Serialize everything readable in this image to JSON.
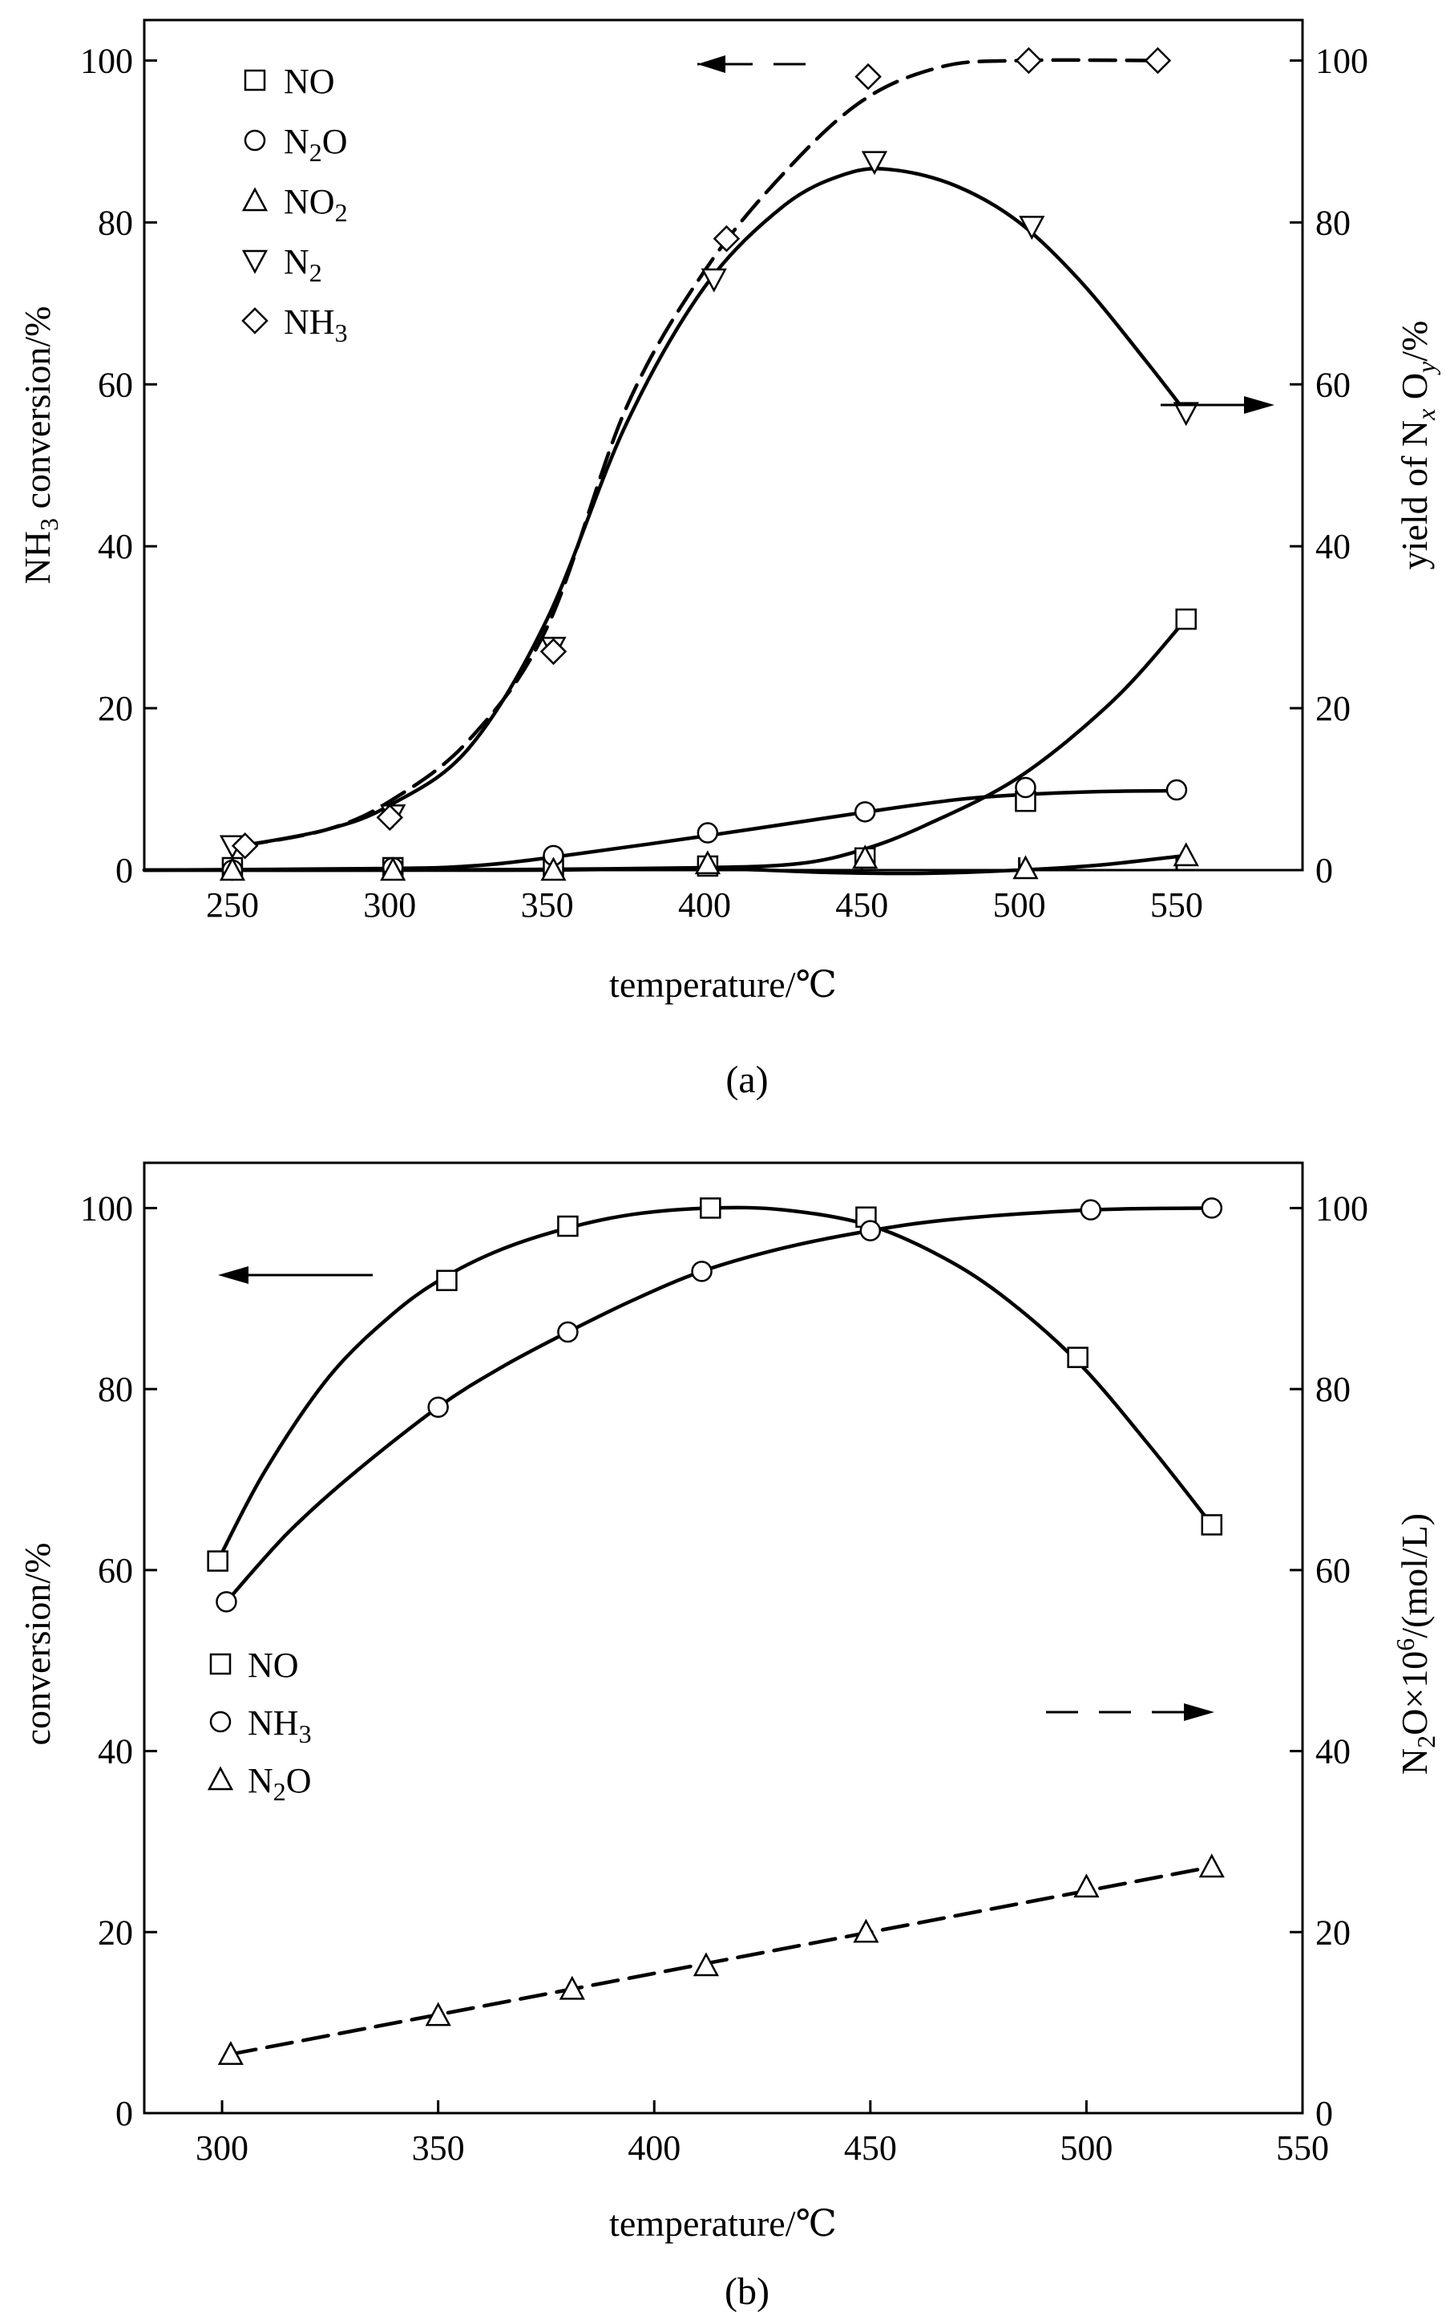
{
  "chart_data": [
    {
      "type": "line",
      "panel_label": "(a)",
      "xlabel": "temperature/℃",
      "ylabel_left": {
        "main": "NH",
        "sub": "3",
        "rest": " conversion/%"
      },
      "ylabel_right": {
        "p1": "yield of N",
        "sub1": "x",
        "p2": " O",
        "sub2": "y",
        "p3": "/%"
      },
      "xlim": [
        222,
        590
      ],
      "ylim": [
        0,
        105
      ],
      "x_ticks": [
        250,
        300,
        350,
        400,
        450,
        500,
        550
      ],
      "y_ticks": [
        0,
        20,
        40,
        60,
        80,
        100
      ],
      "y_ticks_right": [
        0,
        20,
        40,
        60,
        80,
        100
      ],
      "series": [
        {
          "name": "NO",
          "label": {
            "main": "NO",
            "sub": ""
          },
          "marker": "square",
          "line": "solid",
          "axis": "right",
          "points": [
            [
              250,
              0.3
            ],
            [
              301,
              0.3
            ],
            [
              352,
              0.3
            ],
            [
              401,
              0.5
            ],
            [
              451,
              1.5
            ],
            [
              502,
              8.5
            ],
            [
              553,
              31
            ]
          ],
          "curve": [
            [
              222,
              0
            ],
            [
              300,
              0
            ],
            [
              350,
              0.1
            ],
            [
              400,
              0.3
            ],
            [
              430,
              0.8
            ],
            [
              450,
              2.5
            ],
            [
              470,
              5.5
            ],
            [
              500,
              11.5
            ],
            [
              530,
              21
            ],
            [
              553,
              31
            ]
          ]
        },
        {
          "name": "N2O",
          "label": {
            "main": "N",
            "sub": "2",
            "tail": "O"
          },
          "marker": "circle",
          "line": "solid",
          "axis": "right",
          "points": [
            [
              250,
              0
            ],
            [
              301,
              0.3
            ],
            [
              352,
              1.8
            ],
            [
              401,
              4.6
            ],
            [
              451,
              7.2
            ],
            [
              502,
              10.2
            ],
            [
              550,
              9.9
            ]
          ],
          "curve": [
            [
              222,
              0
            ],
            [
              300,
              0.2
            ],
            [
              325,
              0.5
            ],
            [
              350,
              1.5
            ],
            [
              400,
              4.2
            ],
            [
              450,
              7.1
            ],
            [
              480,
              8.7
            ],
            [
              500,
              9.3
            ],
            [
              525,
              9.7
            ],
            [
              550,
              9.8
            ]
          ]
        },
        {
          "name": "NO2",
          "label": {
            "main": "NO",
            "sub": "2"
          },
          "marker": "triangle-up",
          "line": "solid",
          "axis": "right",
          "points": [
            [
              250,
              0
            ],
            [
              301,
              0
            ],
            [
              352,
              0
            ],
            [
              401,
              0.8
            ],
            [
              451,
              1.5
            ],
            [
              502,
              0.2
            ],
            [
              553,
              1.8
            ]
          ],
          "curve": [
            [
              222,
              0
            ],
            [
              300,
              0
            ],
            [
              350,
              0
            ],
            [
              400,
              0.2
            ],
            [
              440,
              -0.3
            ],
            [
              470,
              -0.4
            ],
            [
              500,
              0
            ],
            [
              525,
              0.6
            ],
            [
              553,
              1.8
            ]
          ]
        },
        {
          "name": "N2",
          "label": {
            "main": "N",
            "sub": "2"
          },
          "marker": "triangle-down",
          "line": "solid",
          "axis": "right",
          "points": [
            [
              250,
              3
            ],
            [
              301,
              6.8
            ],
            [
              352,
              27.5
            ],
            [
              403,
              73
            ],
            [
              454,
              87.5
            ],
            [
              504,
              79.5
            ],
            [
              553,
              56.5
            ]
          ],
          "curve": [
            [
              253,
              3
            ],
            [
              280,
              5
            ],
            [
              300,
              8
            ],
            [
              325,
              15
            ],
            [
              350,
              31
            ],
            [
              375,
              55
            ],
            [
              400,
              72
            ],
            [
              425,
              82
            ],
            [
              445,
              86
            ],
            [
              460,
              86.5
            ],
            [
              480,
              84.5
            ],
            [
              500,
              80
            ],
            [
              520,
              72.5
            ],
            [
              540,
              63
            ],
            [
              553,
              56.5
            ]
          ]
        },
        {
          "name": "NH3",
          "label": {
            "main": "NH",
            "sub": "3"
          },
          "marker": "diamond",
          "line": "dashed",
          "axis": "left",
          "points": [
            [
              254,
              3
            ],
            [
              300,
              6.5
            ],
            [
              352,
              27
            ],
            [
              407,
              78
            ],
            [
              452,
              98
            ],
            [
              503,
              100
            ],
            [
              544,
              100
            ]
          ],
          "curve": [
            [
              253,
              3
            ],
            [
              280,
              5
            ],
            [
              300,
              8.5
            ],
            [
              325,
              16
            ],
            [
              350,
              30
            ],
            [
              375,
              57
            ],
            [
              400,
              74
            ],
            [
              425,
              86
            ],
            [
              450,
              95
            ],
            [
              475,
              99.2
            ],
            [
              500,
              100
            ],
            [
              545,
              100
            ]
          ]
        }
      ],
      "annotations": [
        {
          "type": "arrow",
          "direction": "left",
          "style": "dashed",
          "note": "axis indicator: left axis"
        },
        {
          "type": "arrow",
          "direction": "right",
          "style": "solid",
          "note": "axis indicator: right axis"
        }
      ]
    },
    {
      "type": "line",
      "panel_label": "(b)",
      "xlabel": "temperature/℃",
      "ylabel_left": {
        "main": "conversion/%"
      },
      "ylabel_right": {
        "p1": "N",
        "sub1": "2",
        "p2": "O×10",
        "sup": "6",
        "p3": "/(mol/L)"
      },
      "xlim": [
        282,
        550
      ],
      "ylim": [
        0,
        105
      ],
      "x_ticks": [
        300,
        350,
        400,
        450,
        500,
        550
      ],
      "y_ticks": [
        0,
        20,
        40,
        60,
        80,
        100
      ],
      "y_ticks_right": [
        0,
        20,
        40,
        60,
        80,
        100
      ],
      "series": [
        {
          "name": "NO",
          "label": {
            "main": "NO",
            "sub": ""
          },
          "marker": "square",
          "line": "solid",
          "axis": "left",
          "points": [
            [
              299,
              61
            ],
            [
              352,
              92
            ],
            [
              380,
              98
            ],
            [
              413,
              100
            ],
            [
              449,
              99
            ],
            [
              498,
              83.5
            ],
            [
              529,
              65
            ]
          ],
          "curve": [
            [
              299,
              61
            ],
            [
              310,
              71
            ],
            [
              325,
              81.5
            ],
            [
              340,
              88.5
            ],
            [
              352,
              92.5
            ],
            [
              365,
              95.5
            ],
            [
              380,
              97.8
            ],
            [
              395,
              99.3
            ],
            [
              413,
              100
            ],
            [
              430,
              99.8
            ],
            [
              449,
              98.2
            ],
            [
              465,
              95
            ],
            [
              480,
              90.5
            ],
            [
              498,
              83
            ],
            [
              515,
              73.5
            ],
            [
              529,
              65
            ]
          ]
        },
        {
          "name": "NH3",
          "label": {
            "main": "NH",
            "sub": "3"
          },
          "marker": "circle",
          "line": "solid",
          "axis": "left",
          "points": [
            [
              301,
              56.5
            ],
            [
              350,
              78
            ],
            [
              380,
              86.3
            ],
            [
              411,
              93
            ],
            [
              450,
              97.5
            ],
            [
              501,
              99.8
            ],
            [
              529,
              100
            ]
          ],
          "curve": [
            [
              301,
              56.5
            ],
            [
              315,
              64
            ],
            [
              330,
              70.5
            ],
            [
              350,
              78
            ],
            [
              365,
              82.5
            ],
            [
              380,
              86.3
            ],
            [
              395,
              89.8
            ],
            [
              411,
              93
            ],
            [
              430,
              95.6
            ],
            [
              450,
              97.5
            ],
            [
              470,
              98.8
            ],
            [
              501,
              99.8
            ],
            [
              529,
              100
            ]
          ]
        },
        {
          "name": "N2O",
          "label": {
            "main": "N",
            "sub": "2",
            "tail": "O"
          },
          "marker": "triangle-up",
          "line": "dashed",
          "axis": "right",
          "points": [
            [
              302,
              6.5
            ],
            [
              350,
              10.8
            ],
            [
              381,
              13.7
            ],
            [
              412,
              16.3
            ],
            [
              449,
              20
            ],
            [
              500,
              25
            ],
            [
              529,
              27.2
            ]
          ],
          "curve": [
            [
              302,
              6.5
            ],
            [
              529,
              27.2
            ]
          ]
        }
      ],
      "annotations": [
        {
          "type": "arrow",
          "direction": "left",
          "style": "solid",
          "note": "axis indicator: left axis"
        },
        {
          "type": "arrow",
          "direction": "right",
          "style": "dashed",
          "note": "axis indicator: right axis"
        }
      ]
    }
  ]
}
